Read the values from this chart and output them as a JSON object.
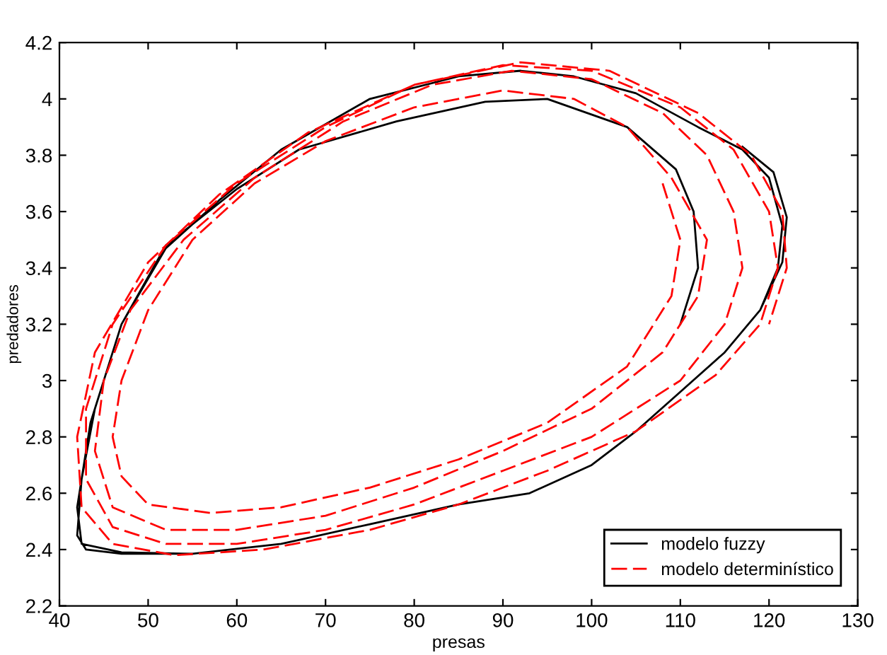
{
  "chart_data": {
    "type": "line",
    "xlabel": "presas",
    "ylabel": "predadores",
    "xlim": [
      40,
      130
    ],
    "ylim": [
      2.2,
      4.2
    ],
    "xticks": [
      40,
      50,
      60,
      70,
      80,
      90,
      100,
      110,
      120,
      130
    ],
    "yticks": [
      2.2,
      2.4,
      2.6,
      2.8,
      3,
      3.2,
      3.4,
      3.6,
      3.8,
      4,
      4.2
    ],
    "grid": false,
    "legend": "bottom right",
    "series": [
      {
        "name": "modelo fuzzy",
        "color": "#000000",
        "line_style": "solid",
        "x": [
          110,
          112,
          111.5,
          109.5,
          104,
          95,
          88,
          78,
          67,
          60,
          52,
          47,
          44,
          42.5,
          42,
          43,
          47,
          55,
          65,
          75,
          85,
          93,
          100,
          105,
          110,
          115,
          119,
          121,
          121.5,
          120,
          117,
          112,
          105,
          98,
          92,
          85,
          75,
          65,
          58,
          52,
          47,
          43.5,
          42,
          42.5,
          47,
          55,
          65,
          75,
          85,
          93,
          100,
          105,
          110,
          115,
          119,
          121.5,
          122,
          120.5,
          117
        ],
        "values": [
          3.2,
          3.4,
          3.6,
          3.75,
          3.9,
          4.0,
          3.99,
          3.92,
          3.82,
          3.68,
          3.48,
          3.2,
          2.9,
          2.65,
          2.45,
          2.4,
          2.385,
          2.385,
          2.42,
          2.49,
          2.56,
          2.6,
          2.7,
          2.82,
          2.96,
          3.1,
          3.25,
          3.4,
          3.55,
          3.72,
          3.82,
          3.9,
          4.02,
          4.08,
          4.1,
          4.08,
          4.0,
          3.82,
          3.64,
          3.47,
          3.2,
          2.85,
          2.55,
          2.42,
          2.39,
          2.385,
          2.42,
          2.49,
          2.56,
          2.6,
          2.7,
          2.82,
          2.96,
          3.1,
          3.25,
          3.42,
          3.58,
          3.74,
          3.83
        ]
      },
      {
        "name": "modelo determinístico",
        "color": "#ff0000",
        "line_style": "dashed",
        "x": [
          108,
          110,
          109,
          104,
          95,
          85,
          75,
          65,
          57,
          50,
          47,
          46,
          47,
          50,
          55,
          62,
          70,
          80,
          90,
          98,
          104,
          109,
          113,
          112,
          108,
          100,
          90,
          80,
          70,
          60,
          52,
          46,
          44,
          45,
          48,
          54,
          62,
          72,
          82,
          91,
          100,
          108,
          113,
          116,
          117,
          115,
          110,
          100,
          90,
          80,
          70,
          60,
          52,
          46,
          43,
          43,
          46,
          52,
          60,
          70,
          80,
          90,
          100,
          110,
          116,
          120,
          121,
          119,
          114,
          105,
          95,
          85,
          75,
          63,
          53,
          46,
          42.5,
          42,
          44,
          50,
          58,
          68,
          80,
          92,
          102,
          112,
          118,
          121.5,
          122,
          120
        ],
        "values": [
          3.7,
          3.5,
          3.3,
          3.05,
          2.85,
          2.72,
          2.62,
          2.55,
          2.53,
          2.56,
          2.66,
          2.8,
          3.0,
          3.25,
          3.5,
          3.7,
          3.85,
          3.97,
          4.03,
          4.0,
          3.9,
          3.72,
          3.5,
          3.3,
          3.1,
          2.9,
          2.75,
          2.62,
          2.52,
          2.47,
          2.47,
          2.55,
          2.75,
          3.0,
          3.25,
          3.5,
          3.72,
          3.92,
          4.05,
          4.1,
          4.07,
          3.95,
          3.8,
          3.6,
          3.4,
          3.2,
          3.0,
          2.8,
          2.68,
          2.56,
          2.47,
          2.42,
          2.42,
          2.48,
          2.65,
          2.9,
          3.2,
          3.48,
          3.7,
          3.9,
          4.05,
          4.12,
          4.1,
          3.97,
          3.82,
          3.6,
          3.4,
          3.2,
          3.02,
          2.82,
          2.68,
          2.56,
          2.47,
          2.4,
          2.38,
          2.42,
          2.55,
          2.8,
          3.1,
          3.42,
          3.66,
          3.88,
          4.05,
          4.13,
          4.1,
          3.95,
          3.8,
          3.6,
          3.4,
          3.2
        ]
      }
    ]
  }
}
